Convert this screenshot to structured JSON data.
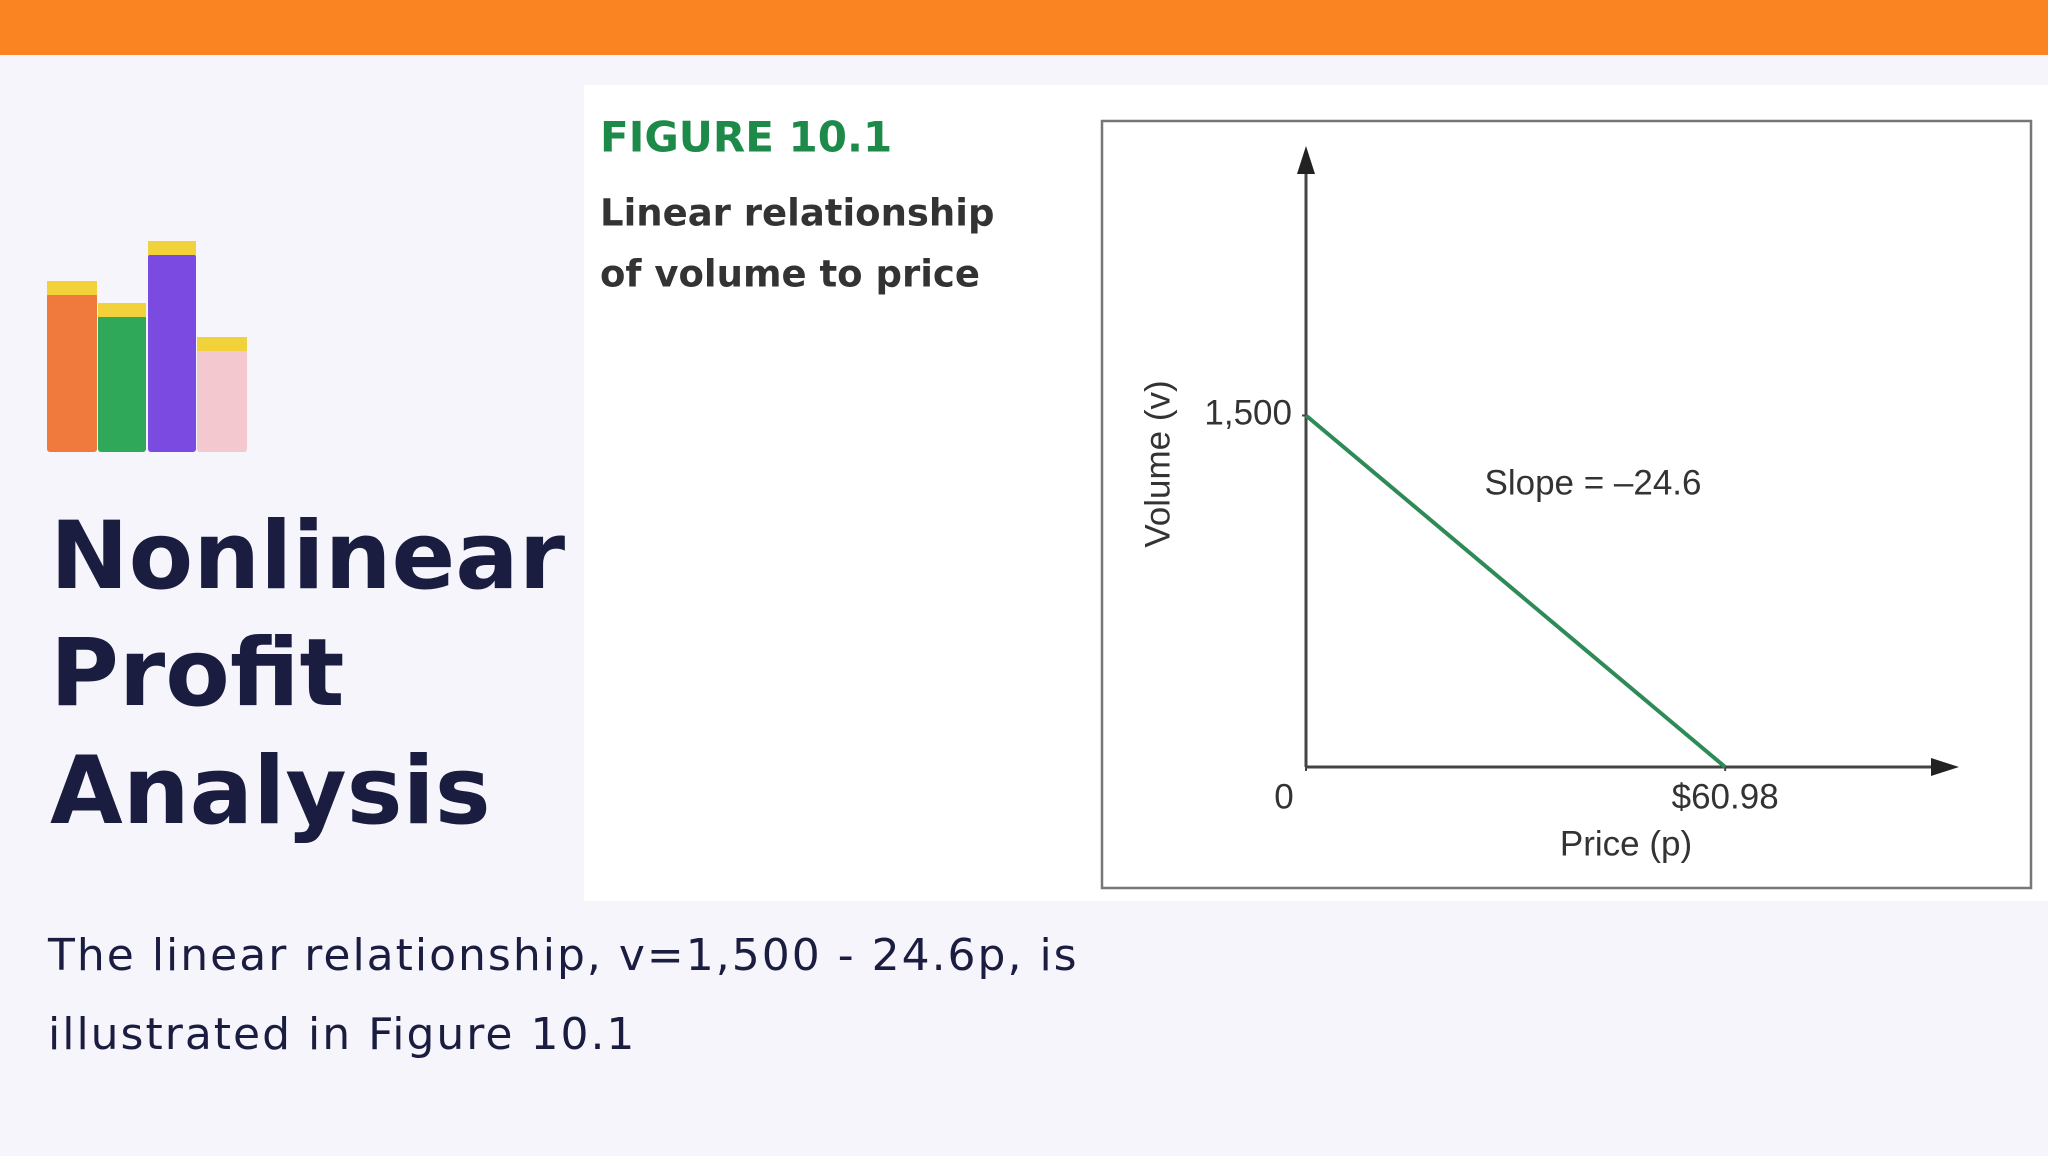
{
  "slide": {
    "title_lines": [
      "Nonlinear",
      "Profit",
      "Analysis"
    ],
    "body_lines": [
      "The linear relationship, v=1,500 - 24.6p, is",
      "illustrated in Figure 10.1"
    ]
  },
  "chart_data": {
    "type": "line",
    "figure_label": "FIGURE 10.1",
    "title_lines": [
      "Linear relationship",
      "of volume to price"
    ],
    "x_label": "Price (p)",
    "y_label": "Volume (v)",
    "annotation": "Slope = –24.6",
    "x": [
      0,
      60.98
    ],
    "series": [
      {
        "name": "Volume",
        "color": "#2e8b57",
        "values": [
          1500,
          0
        ]
      }
    ],
    "xlim": [
      0,
      95
    ],
    "ylim": [
      0,
      2650
    ],
    "xticks": [
      0,
      {
        "value": 60.98,
        "label": "$60.98"
      }
    ],
    "yticks": [
      {
        "value": 1500,
        "label": "1,500"
      }
    ],
    "grid": false
  }
}
